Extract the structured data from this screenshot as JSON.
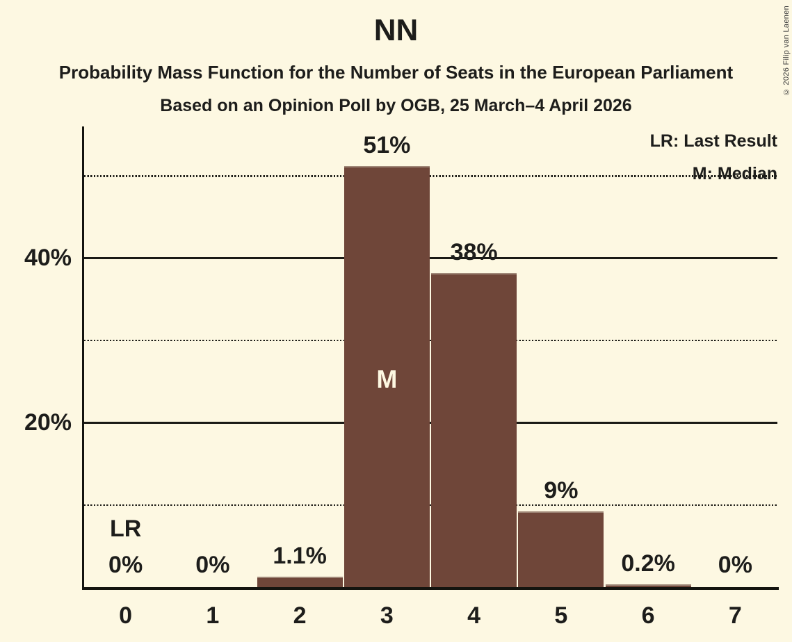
{
  "chart_data": {
    "type": "bar",
    "title": "NN",
    "subtitle": "Probability Mass Function for the Number of Seats in the European Parliament",
    "sub_subtitle": "Based on an Opinion Poll by OGB, 25 March–4 April 2026",
    "categories": [
      "0",
      "1",
      "2",
      "3",
      "4",
      "5",
      "6",
      "7"
    ],
    "values": [
      0,
      0,
      1.1,
      51,
      38,
      9,
      0.2,
      0
    ],
    "value_labels": [
      "0%",
      "0%",
      "1.1%",
      "51%",
      "38%",
      "9%",
      "0.2%",
      "0%"
    ],
    "xlabel": "",
    "ylabel": "",
    "ylim": [
      0,
      56
    ],
    "grid": "horizontal",
    "yticks": [
      {
        "value": 20,
        "label": "20%"
      },
      {
        "value": 40,
        "label": "40%"
      }
    ],
    "gridlines": [
      {
        "value": 10,
        "style": "dotted"
      },
      {
        "value": 20,
        "style": "solid"
      },
      {
        "value": 30,
        "style": "dotted"
      },
      {
        "value": 40,
        "style": "solid"
      },
      {
        "value": 50,
        "style": "dotted"
      }
    ],
    "annotations": {
      "last_result": {
        "category_index": 0,
        "label": "LR"
      },
      "median": {
        "category_index": 3,
        "label": "M"
      }
    },
    "legend": {
      "lr": "LR: Last Result",
      "m": "M: Median"
    },
    "legend_position": "top-right"
  },
  "copyright": "© 2026 Filip van Laenen",
  "colors": {
    "background": "#FDF8E2",
    "bar": "#6F4639",
    "bar_edge": "#A08878",
    "text": "#1D1D1B"
  }
}
